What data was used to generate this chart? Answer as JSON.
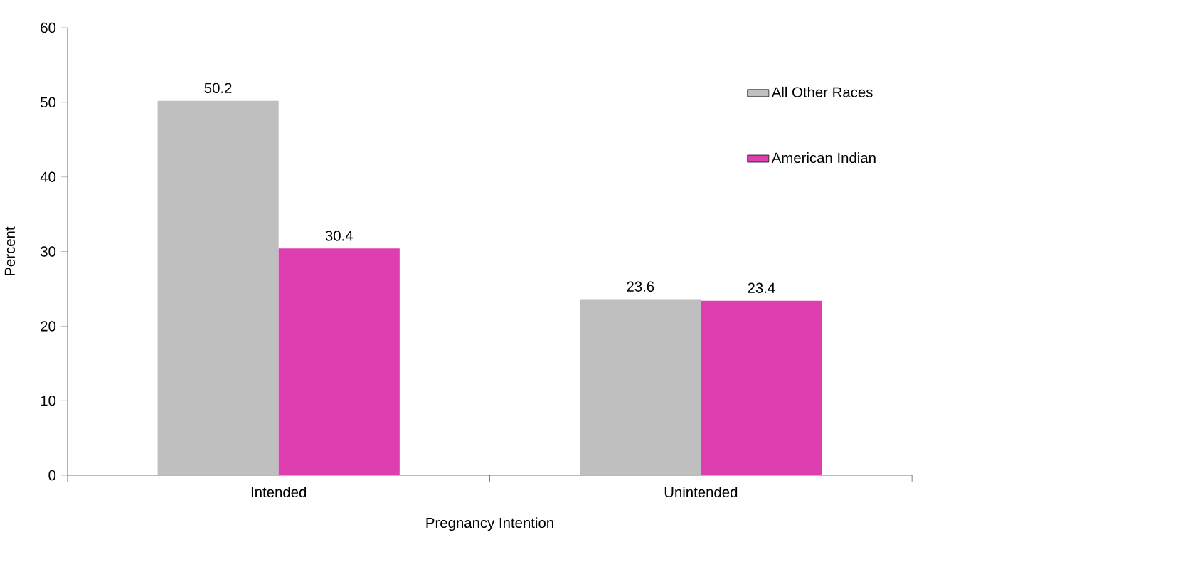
{
  "chart_data": {
    "type": "bar",
    "xlabel": "Pregnancy Intention",
    "ylabel": "Percent",
    "categories": [
      "Intended",
      "Unintended"
    ],
    "series": [
      {
        "name": "All Other Races",
        "color": "#bfbfbf",
        "values": [
          50.2,
          23.6
        ]
      },
      {
        "name": "American Indian",
        "color": "#dd3eb0",
        "values": [
          30.4,
          23.4
        ]
      }
    ],
    "ylim": [
      0,
      60
    ],
    "yticks": [
      0,
      10,
      20,
      30,
      40,
      50,
      60
    ],
    "data_labels": true,
    "legend": "top right",
    "grid": false
  }
}
